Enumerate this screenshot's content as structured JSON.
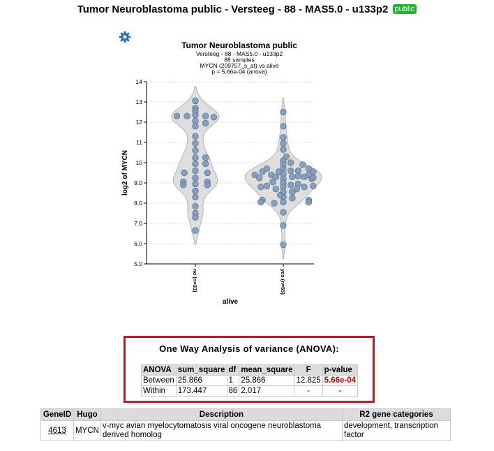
{
  "page": {
    "title": "Tumor Neuroblastoma public - Versteeg - 88 - MAS5.0 - u133p2",
    "badge": "public",
    "settings_icon": "gear-icon"
  },
  "chart_data": {
    "type": "violin",
    "title": "Tumor Neuroblastoma public",
    "subtitle_lines": [
      "Versteeg - 88 - MAS5.0 - u133p2",
      "88 samples",
      "MYCN (209757_s_at) vs alive",
      "p = 5.66e-04 (anova)"
    ],
    "xlabel": "alive",
    "ylabel": "log2 of MYCN",
    "ylim": [
      5.0,
      14.0
    ],
    "yticks": [
      "5.0",
      "6.0",
      "7.0",
      "8.0",
      "9.0",
      "10",
      "11",
      "12",
      "13",
      "14"
    ],
    "grid": true,
    "groups": [
      {
        "label": "no (n=33)",
        "points": [
          {
            "dx": -1.0,
            "y": 12.3
          },
          {
            "dx": -0.45,
            "y": 12.3
          },
          {
            "dx": 0.0,
            "y": 13.05
          },
          {
            "dx": 0.0,
            "y": 12.7
          },
          {
            "dx": 0.0,
            "y": 12.55
          },
          {
            "dx": 0.0,
            "y": 12.35
          },
          {
            "dx": 0.0,
            "y": 12.05
          },
          {
            "dx": 0.0,
            "y": 11.8
          },
          {
            "dx": 0.0,
            "y": 11.3
          },
          {
            "dx": 0.0,
            "y": 10.95
          },
          {
            "dx": 0.0,
            "y": 10.6
          },
          {
            "dx": 0.0,
            "y": 10.25
          },
          {
            "dx": 0.0,
            "y": 9.95
          },
          {
            "dx": 0.0,
            "y": 9.6
          },
          {
            "dx": 0.0,
            "y": 9.25
          },
          {
            "dx": 0.0,
            "y": 8.95
          },
          {
            "dx": 0.0,
            "y": 8.6
          },
          {
            "dx": 0.0,
            "y": 8.3
          },
          {
            "dx": 0.0,
            "y": 7.85
          },
          {
            "dx": 0.0,
            "y": 7.5
          },
          {
            "dx": 0.0,
            "y": 7.3
          },
          {
            "dx": 0.0,
            "y": 6.65
          },
          {
            "dx": 0.55,
            "y": 12.3
          },
          {
            "dx": 0.55,
            "y": 11.95
          },
          {
            "dx": 0.55,
            "y": 10.25
          },
          {
            "dx": 0.55,
            "y": 9.95
          },
          {
            "dx": 1.0,
            "y": 12.25
          },
          {
            "dx": -0.6,
            "y": 9.5
          },
          {
            "dx": -0.65,
            "y": 9.05
          },
          {
            "dx": -0.65,
            "y": 8.9
          },
          {
            "dx": 0.65,
            "y": 9.5
          },
          {
            "dx": 0.65,
            "y": 9.05
          },
          {
            "dx": 0.65,
            "y": 8.9
          }
        ]
      },
      {
        "label": "yes (n=55)",
        "points": [
          {
            "dx": 0.0,
            "y": 12.5
          },
          {
            "dx": 0.0,
            "y": 11.8
          },
          {
            "dx": 0.0,
            "y": 11.25
          },
          {
            "dx": 0.0,
            "y": 10.95
          },
          {
            "dx": 0.0,
            "y": 10.65
          },
          {
            "dx": 0.0,
            "y": 10.1
          },
          {
            "dx": 0.0,
            "y": 9.9
          },
          {
            "dx": 0.0,
            "y": 9.7
          },
          {
            "dx": 0.0,
            "y": 9.45
          },
          {
            "dx": 0.0,
            "y": 9.2
          },
          {
            "dx": 0.0,
            "y": 9.0
          },
          {
            "dx": 0.0,
            "y": 8.8
          },
          {
            "dx": 0.0,
            "y": 8.55
          },
          {
            "dx": 0.0,
            "y": 8.3
          },
          {
            "dx": 0.0,
            "y": 8.05
          },
          {
            "dx": 0.0,
            "y": 7.55
          },
          {
            "dx": 0.0,
            "y": 6.9
          },
          {
            "dx": 0.0,
            "y": 5.95
          },
          {
            "dx": -0.95,
            "y": 9.4
          },
          {
            "dx": -0.8,
            "y": 9.25
          },
          {
            "dx": -0.7,
            "y": 9.55
          },
          {
            "dx": -0.55,
            "y": 9.7
          },
          {
            "dx": -0.75,
            "y": 8.8
          },
          {
            "dx": -0.55,
            "y": 8.85
          },
          {
            "dx": -0.7,
            "y": 8.15
          },
          {
            "dx": -0.75,
            "y": 8.05
          },
          {
            "dx": -0.4,
            "y": 9.4
          },
          {
            "dx": -0.35,
            "y": 9.05
          },
          {
            "dx": -0.25,
            "y": 8.7
          },
          {
            "dx": -0.25,
            "y": 9.3
          },
          {
            "dx": -0.15,
            "y": 9.55
          },
          {
            "dx": -0.3,
            "y": 8.0
          },
          {
            "dx": 0.25,
            "y": 10.0
          },
          {
            "dx": 0.25,
            "y": 9.6
          },
          {
            "dx": 0.3,
            "y": 9.3
          },
          {
            "dx": 0.25,
            "y": 8.9
          },
          {
            "dx": 0.3,
            "y": 8.55
          },
          {
            "dx": 0.3,
            "y": 8.25
          },
          {
            "dx": 0.5,
            "y": 9.6
          },
          {
            "dx": 0.5,
            "y": 9.35
          },
          {
            "dx": 0.5,
            "y": 8.95
          },
          {
            "dx": 0.45,
            "y": 8.7
          },
          {
            "dx": 0.65,
            "y": 9.9
          },
          {
            "dx": 0.7,
            "y": 9.3
          },
          {
            "dx": 0.7,
            "y": 8.8
          },
          {
            "dx": 0.85,
            "y": 9.7
          },
          {
            "dx": 0.85,
            "y": 9.4
          },
          {
            "dx": 0.95,
            "y": 9.2
          },
          {
            "dx": 0.85,
            "y": 8.15
          },
          {
            "dx": 0.85,
            "y": 8.05
          },
          {
            "dx": 1.0,
            "y": 9.55
          },
          {
            "dx": 1.0,
            "y": 9.25
          },
          {
            "dx": 1.0,
            "y": 8.85
          },
          {
            "dx": 0.1,
            "y": 10.3
          },
          {
            "dx": -0.1,
            "y": 8.4
          }
        ]
      }
    ],
    "colors": {
      "violin_fill": "#dedede",
      "violin_stroke": "#b4b4b4",
      "point_fill": "#7f98b8",
      "point_stroke": "#5d7799",
      "grid": "#dddddd"
    }
  },
  "anova": {
    "title": "One Way Analysis of variance (ANOVA):",
    "headers": [
      "ANOVA",
      "sum_square",
      "df",
      "mean_square",
      "F",
      "p-value"
    ],
    "rows": [
      [
        "Between",
        "25.866",
        "1",
        "25.866",
        "12.825",
        "5.66e-04"
      ],
      [
        "Within",
        "173.447",
        "86",
        "2.017",
        "-",
        "-"
      ]
    ],
    "pvalue_color": "#cc0000",
    "border_color": "#b0202a"
  },
  "gene_table": {
    "headers": [
      "GeneID",
      "Hugo",
      "Description",
      "R2 gene categories"
    ],
    "row": {
      "geneid": "4613",
      "hugo": "MYCN",
      "description": "v-myc avian myelocytomatosis viral oncogene neuroblastoma derived homolog",
      "categories": "development, transcription factor"
    }
  }
}
